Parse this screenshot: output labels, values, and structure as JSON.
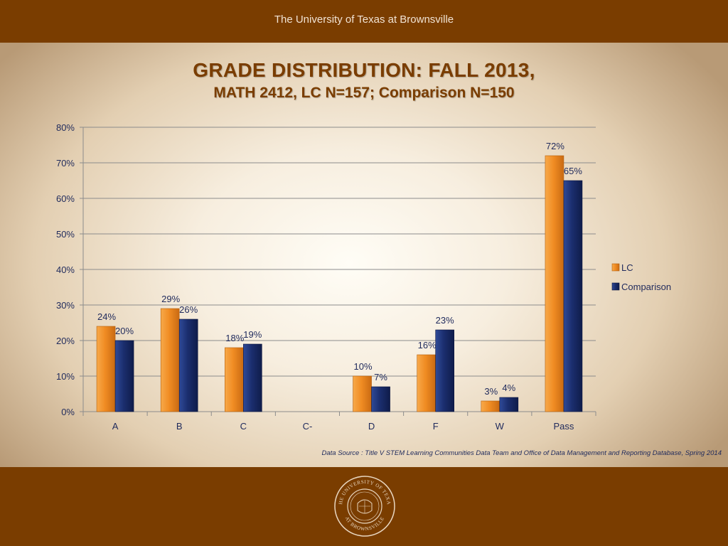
{
  "header": {
    "title": "The University of Texas at Brownsville"
  },
  "slide": {
    "title_line1": "GRADE DISTRIBUTION: FALL 2013,",
    "title_line2": "MATH 2412, LC N=157; Comparison N=150",
    "source": "Data Source : Title V STEM Learning Communities Data Team and  Office of Data Management and Reporting Database, Spring 2014"
  },
  "seal": {
    "top_text": "THE UNIVERSITY OF TEXAS",
    "bottom_text": "AT BROWNSVILLE"
  },
  "colors": {
    "brown": "#7a3d00",
    "lc": "#f08c23",
    "comparison": "#1b2e6e",
    "text": "#1f2a5c"
  },
  "chart_data": {
    "type": "bar",
    "categories": [
      "A",
      "B",
      "C",
      "C-",
      "D",
      "F",
      "W",
      "Pass"
    ],
    "series": [
      {
        "name": "LC",
        "values": [
          24,
          29,
          18,
          null,
          10,
          16,
          3,
          72
        ],
        "labels": [
          "24%",
          "29%",
          "18%",
          null,
          "10%",
          "16%",
          "3%",
          "72%"
        ]
      },
      {
        "name": "Comparison",
        "values": [
          20,
          26,
          19,
          null,
          7,
          23,
          4,
          65
        ],
        "labels": [
          "20%",
          "26%",
          "19%",
          null,
          "7%",
          "23%",
          "4%",
          "65%"
        ]
      }
    ],
    "ylim": [
      0,
      80
    ],
    "yticks": [
      "0%",
      "10%",
      "20%",
      "30%",
      "40%",
      "50%",
      "60%",
      "70%",
      "80%"
    ],
    "grid": true,
    "legend": "right"
  }
}
